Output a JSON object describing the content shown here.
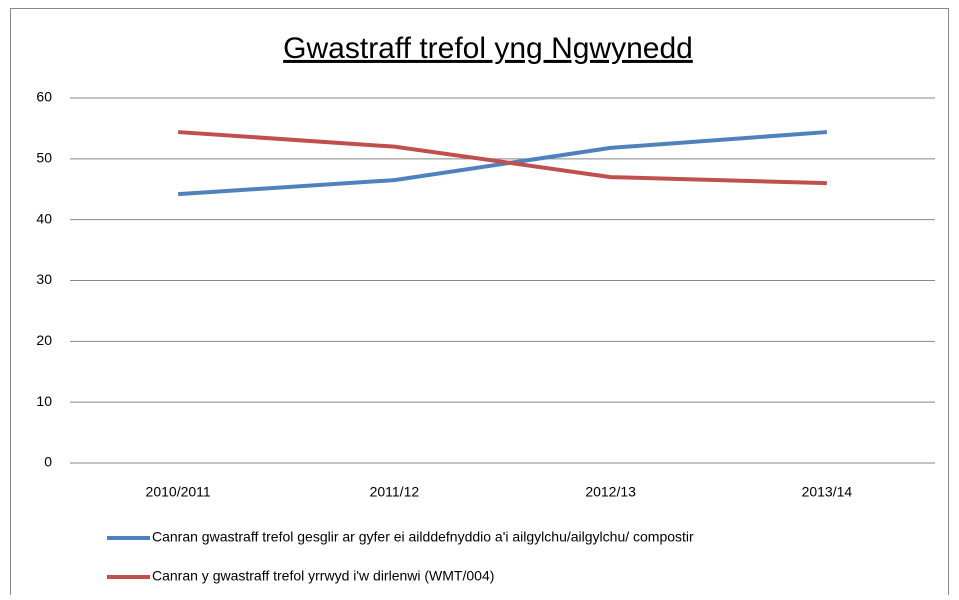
{
  "chart_data": {
    "type": "line",
    "title": "Gwastraff trefol yng Ngwynedd",
    "categories": [
      "2010/2011",
      "2011/12",
      "2012/13",
      "2013/14"
    ],
    "series": [
      {
        "name": "Canran gwastraff trefol gesglir ar gyfer ei ailddefnyddio a'i ailgylchu/ailgylchu/ compostir",
        "color": "#4f81bd",
        "values": [
          44.2,
          46.5,
          51.8,
          54.4
        ]
      },
      {
        "name": "Canran y gwastraff trefol yrrwyd i'w dirlenwi (WMT/004)",
        "color": "#c0504d",
        "values": [
          54.4,
          52.0,
          47.0,
          46.0
        ]
      }
    ],
    "ylim": [
      0,
      60
    ],
    "yticks": [
      0,
      10,
      20,
      30,
      40,
      50,
      60
    ],
    "grid": true,
    "legend": "bottom"
  }
}
